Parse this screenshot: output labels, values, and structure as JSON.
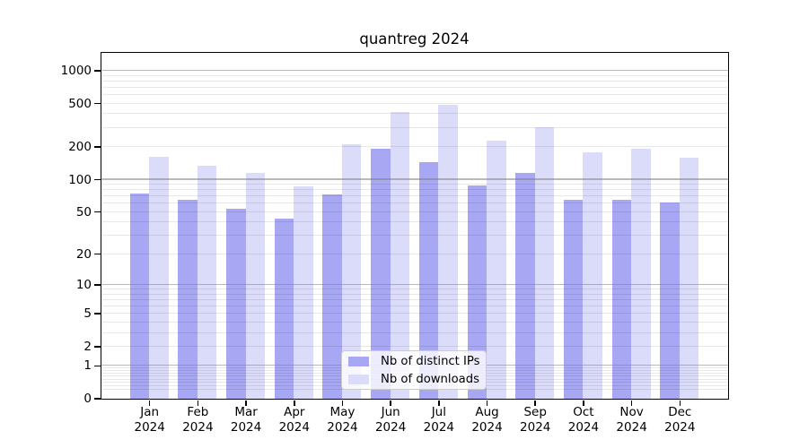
{
  "chart_data": {
    "type": "bar",
    "title": "quantreg 2024",
    "year_label": "2024",
    "categories": [
      "Jan",
      "Feb",
      "Mar",
      "Apr",
      "May",
      "Jun",
      "Jul",
      "Aug",
      "Sep",
      "Oct",
      "Nov",
      "Dec"
    ],
    "series": [
      {
        "name": "Nb of distinct IPs",
        "color": "#a7a7f4",
        "values": [
          74,
          65,
          53,
          43,
          73,
          190,
          145,
          88,
          115,
          64,
          65,
          61
        ]
      },
      {
        "name": "Nb of downloads",
        "color": "#dbdbfa",
        "values": [
          160,
          134,
          115,
          86,
          210,
          414,
          480,
          227,
          300,
          178,
          190,
          157
        ]
      }
    ],
    "yticks": [
      0,
      1,
      2,
      5,
      10,
      20,
      50,
      100,
      200,
      500,
      1000
    ],
    "yscale": "log10(value+1)",
    "ylim": [
      0,
      1460
    ],
    "grid": {
      "major": [
        1,
        10,
        100,
        1000
      ],
      "minor_bases": [
        0.1,
        1,
        10,
        100
      ]
    },
    "legend_position": "lower center",
    "xlabel": "",
    "ylabel": ""
  }
}
